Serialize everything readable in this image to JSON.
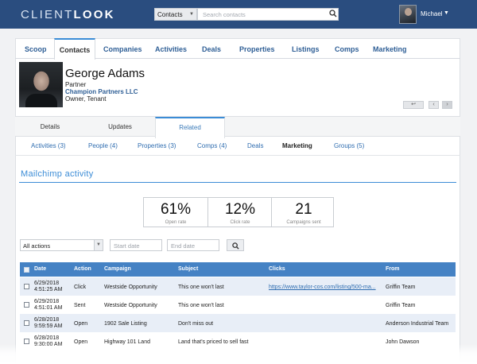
{
  "app": {
    "logo_light": "CLIENT",
    "logo_bold": "LOOK"
  },
  "header": {
    "search_scope": "Contacts",
    "search_placeholder": "Search contacts",
    "user_name": "Michael",
    "user_caret": "▼"
  },
  "nav": {
    "items": [
      "Scoop",
      "Contacts",
      "Companies",
      "Activities",
      "Deals",
      "Properties",
      "Listings",
      "Comps",
      "Marketing"
    ],
    "active": "Contacts"
  },
  "profile": {
    "name": "George Adams",
    "title": "Partner",
    "company": "Champion Partners LLC",
    "role": "Owner, Tenant"
  },
  "pager": {
    "back": "↩",
    "prev": "‹",
    "next": "›"
  },
  "subtabs": {
    "items": [
      "Details",
      "Updates",
      "Related"
    ],
    "active": "Related"
  },
  "related_tabs": {
    "items": [
      "Activities (3)",
      "People (4)",
      "Properties (3)",
      "Comps (4)",
      "Deals",
      "Marketing",
      "Groups (5)"
    ],
    "active": "Marketing"
  },
  "section": {
    "title": "Mailchimp activity"
  },
  "stats": [
    {
      "value": "61%",
      "label": "Open rate"
    },
    {
      "value": "12%",
      "label": "Click rate"
    },
    {
      "value": "21",
      "label": "Campaigns sent"
    }
  ],
  "filters": {
    "action_value": "All actions",
    "start_placeholder": "Start date",
    "end_placeholder": "End date"
  },
  "table": {
    "columns": [
      "Date",
      "Action",
      "Campaign",
      "Subject",
      "Clicks",
      "From"
    ],
    "rows": [
      {
        "date": "6/29/2018",
        "time": "4:51:25 AM",
        "action": "Click",
        "campaign": "Westside Opportunity",
        "subject": "This one won't last",
        "clicks": "https://www.taylor-cos.com/listing/500-ma...",
        "from": "Griffin Team"
      },
      {
        "date": "6/29/2018",
        "time": "4:51:01 AM",
        "action": "Sent",
        "campaign": "Westside Opportunity",
        "subject": "This one won't last",
        "clicks": "",
        "from": "Griffin Team"
      },
      {
        "date": "6/28/2018",
        "time": "9:59:59 AM",
        "action": "Open",
        "campaign": "1902 Sale Listing",
        "subject": "Don't miss out",
        "clicks": "",
        "from": "Anderson Industrial Team"
      },
      {
        "date": "6/28/2018",
        "time": "9:30:00 AM",
        "action": "Open",
        "campaign": "Highway 101 Land",
        "subject": "Land that's priced to sell fast",
        "clicks": "",
        "from": "John Dawson"
      }
    ]
  },
  "colors": {
    "brand": "#2a4d7f",
    "accent": "#3b8cd6",
    "table_header": "#4582c4",
    "link": "#2f6db0"
  }
}
